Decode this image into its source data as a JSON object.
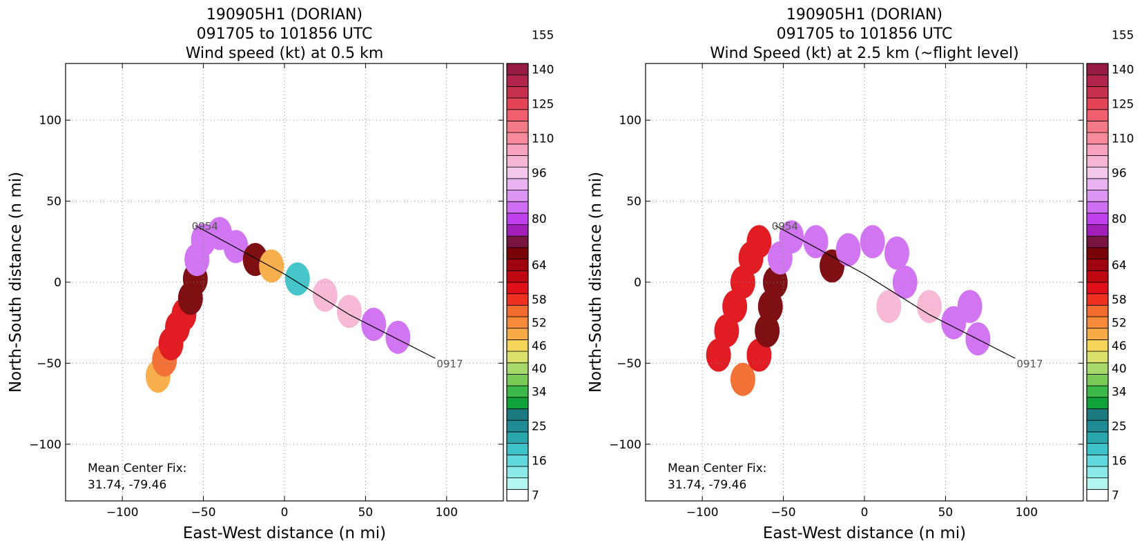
{
  "colorbar": {
    "colors": [
      "#ffffff",
      "#b3f5f0",
      "#8ae8e6",
      "#5fd9db",
      "#3cc2c8",
      "#2aa6ad",
      "#1f8c95",
      "#1a7a80",
      "#11a33b",
      "#3cb84a",
      "#79c957",
      "#a7d86a",
      "#d9e06a",
      "#f5d55a",
      "#f8ab45",
      "#f58a3a",
      "#f26b2e",
      "#f0301e",
      "#e01018",
      "#c00812",
      "#a00610",
      "#780408",
      "#7a1440",
      "#a31db8",
      "#c040f0",
      "#cf6ef2",
      "#dc95f2",
      "#e8b3f0",
      "#f4c8ec",
      "#f7b6d4",
      "#f7a2bf",
      "#f78a9a",
      "#f27a86",
      "#ef5f6d",
      "#e24455",
      "#c7304c",
      "#b2254c",
      "#951a44"
    ],
    "tick_labels": [
      "7",
      "16",
      "25",
      "34",
      "40",
      "46",
      "52",
      "58",
      "64",
      "80",
      "96",
      "110",
      "125",
      "140",
      "155"
    ]
  },
  "chart_data": [
    {
      "type": "heatmap",
      "title_lines": [
        "190905H1 (DORIAN)",
        "091705 to 101856 UTC",
        "Wind speed (kt) at 0.5 km"
      ],
      "xlabel": "East-West distance (n mi)",
      "ylabel": "North-South distance (n mi)",
      "xlim": [
        -135,
        135
      ],
      "ylim": [
        -135,
        135
      ],
      "xticks": [
        -100,
        -50,
        0,
        50,
        100
      ],
      "yticks": [
        -100,
        -50,
        0,
        50,
        100
      ],
      "xtick_labels": [
        "−100",
        "−50",
        "0",
        "50",
        "100"
      ],
      "ytick_labels": [
        "−100",
        "−50",
        "0",
        "50",
        "100"
      ],
      "grid": true,
      "note_lines": [
        "Mean Center Fix:",
        "31.74, -79.46"
      ],
      "track": [
        [
          93,
          -47
        ],
        [
          40,
          -20
        ],
        [
          0,
          5
        ],
        [
          -55,
          35
        ]
      ],
      "track_labels": [
        {
          "text": "0917",
          "x": 93,
          "y": -50
        },
        {
          "text": "0954",
          "x": -58,
          "y": 35
        }
      ],
      "wind_cells": [
        {
          "x": -78,
          "y": -58,
          "v": 46
        },
        {
          "x": -74,
          "y": -48,
          "v": 52
        },
        {
          "x": -70,
          "y": -38,
          "v": 58
        },
        {
          "x": -66,
          "y": -28,
          "v": 60
        },
        {
          "x": -62,
          "y": -20,
          "v": 62
        },
        {
          "x": -58,
          "y": -10,
          "v": 70
        },
        {
          "x": -55,
          "y": 2,
          "v": 76
        },
        {
          "x": -54,
          "y": 14,
          "v": 82
        },
        {
          "x": -50,
          "y": 26,
          "v": 84
        },
        {
          "x": -40,
          "y": 30,
          "v": 82
        },
        {
          "x": -30,
          "y": 22,
          "v": 80
        },
        {
          "x": -18,
          "y": 14,
          "v": 78
        },
        {
          "x": -8,
          "y": 10,
          "v": 46
        },
        {
          "x": 8,
          "y": 2,
          "v": 22
        },
        {
          "x": 25,
          "y": -8,
          "v": 100
        },
        {
          "x": 40,
          "y": -18,
          "v": 102
        },
        {
          "x": 55,
          "y": -26,
          "v": 92
        },
        {
          "x": 70,
          "y": -34,
          "v": 86
        }
      ]
    },
    {
      "type": "heatmap",
      "title_lines": [
        "190905H1 (DORIAN)",
        "091705 to 101856 UTC",
        "Wind Speed (kt) at 2.5 km (~flight level)"
      ],
      "xlabel": "East-West distance (n mi)",
      "ylabel": "North-South distance (n mi)",
      "xlim": [
        -135,
        135
      ],
      "ylim": [
        -135,
        135
      ],
      "xticks": [
        -100,
        -50,
        0,
        50,
        100
      ],
      "yticks": [
        -100,
        -50,
        0,
        50,
        100
      ],
      "xtick_labels": [
        "−100",
        "−50",
        "0",
        "50",
        "100"
      ],
      "ytick_labels": [
        "−100",
        "−50",
        "0",
        "50",
        "100"
      ],
      "grid": true,
      "note_lines": [
        "Mean Center Fix:",
        "31.74, -79.46"
      ],
      "track": [
        [
          93,
          -47
        ],
        [
          40,
          -20
        ],
        [
          0,
          5
        ],
        [
          -55,
          35
        ]
      ],
      "track_labels": [
        {
          "text": "0917",
          "x": 93,
          "y": -50
        },
        {
          "text": "0954",
          "x": -58,
          "y": 35
        }
      ],
      "wind_cells": [
        {
          "x": -90,
          "y": -45,
          "v": 58
        },
        {
          "x": -85,
          "y": -30,
          "v": 60
        },
        {
          "x": -80,
          "y": -15,
          "v": 62
        },
        {
          "x": -75,
          "y": 0,
          "v": 58
        },
        {
          "x": -70,
          "y": 15,
          "v": 60
        },
        {
          "x": -65,
          "y": 25,
          "v": 58
        },
        {
          "x": -75,
          "y": -60,
          "v": 56
        },
        {
          "x": -65,
          "y": -45,
          "v": 62
        },
        {
          "x": -60,
          "y": -30,
          "v": 66
        },
        {
          "x": -58,
          "y": -15,
          "v": 70
        },
        {
          "x": -55,
          "y": 0,
          "v": 76
        },
        {
          "x": -52,
          "y": 15,
          "v": 80
        },
        {
          "x": -45,
          "y": 28,
          "v": 82
        },
        {
          "x": -30,
          "y": 25,
          "v": 80
        },
        {
          "x": -20,
          "y": 10,
          "v": 78
        },
        {
          "x": -10,
          "y": 20,
          "v": 84
        },
        {
          "x": 5,
          "y": 25,
          "v": 82
        },
        {
          "x": 20,
          "y": 18,
          "v": 82
        },
        {
          "x": 25,
          "y": 0,
          "v": 84
        },
        {
          "x": 15,
          "y": -15,
          "v": 100
        },
        {
          "x": 40,
          "y": -15,
          "v": 102
        },
        {
          "x": 55,
          "y": -25,
          "v": 86
        },
        {
          "x": 65,
          "y": -15,
          "v": 82
        },
        {
          "x": 70,
          "y": -35,
          "v": 84
        }
      ]
    }
  ]
}
